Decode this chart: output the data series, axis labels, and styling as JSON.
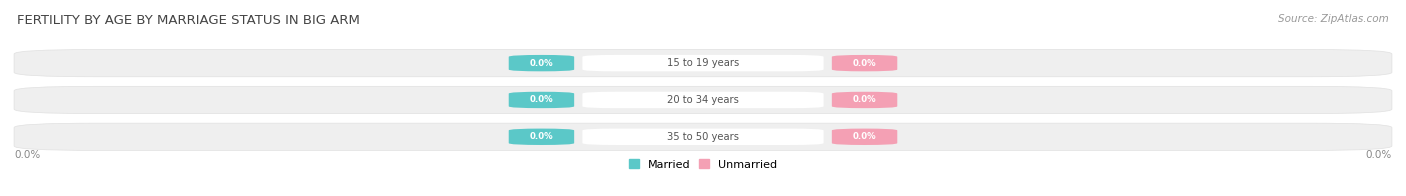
{
  "title": "FERTILITY BY AGE BY MARRIAGE STATUS IN BIG ARM",
  "source": "Source: ZipAtlas.com",
  "age_groups": [
    "15 to 19 years",
    "20 to 34 years",
    "35 to 50 years"
  ],
  "married_values": [
    0.0,
    0.0,
    0.0
  ],
  "unmarried_values": [
    0.0,
    0.0,
    0.0
  ],
  "married_color": "#5bc8c8",
  "unmarried_color": "#f4a0b4",
  "row_bg_color": "#efefef",
  "row_bg_border": "#e0e0e0",
  "xlim": [
    -1.0,
    1.0
  ],
  "title_fontsize": 9.5,
  "source_fontsize": 7.5,
  "bar_height": 0.62,
  "fig_bg_color": "#ffffff",
  "axis_label_color": "#888888",
  "age_label_color": "#555555",
  "value_label_color": "#ffffff"
}
